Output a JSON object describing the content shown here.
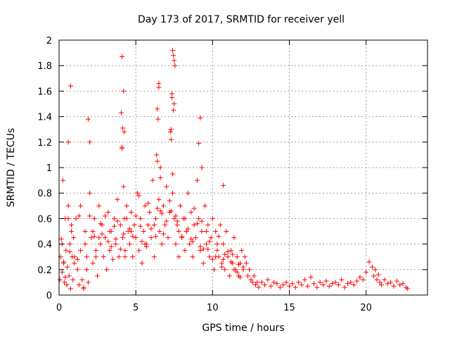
{
  "chart_data": {
    "type": "scatter",
    "title": "Day 173 of 2017, SRMTID for receiver yell",
    "xlabel": "GPS time / hours",
    "ylabel": "SRMTID / TECUs",
    "xlim": [
      0,
      24
    ],
    "ylim": [
      0,
      2
    ],
    "xticks": [
      "0",
      "5",
      "10",
      "15",
      "20"
    ],
    "xtick_values": [
      0,
      5,
      10,
      15,
      20
    ],
    "yticks": [
      "0",
      "0.2",
      "0.4",
      "0.6",
      "0.8",
      "1",
      "1.2",
      "1.4",
      "1.6",
      "1.8",
      "2"
    ],
    "ytick_values": [
      0,
      0.2,
      0.4,
      0.6,
      0.8,
      1.0,
      1.2,
      1.4,
      1.6,
      1.8,
      2.0
    ],
    "grid": true,
    "marker": "+",
    "color": "#ff0000",
    "series": [
      {
        "name": "SRMTID",
        "x": [
          0.05,
          0.1,
          0.15,
          0.2,
          0.25,
          0.3,
          0.35,
          0.4,
          0.45,
          0.5,
          0.55,
          0.6,
          0.65,
          0.7,
          0.75,
          0.8,
          0.85,
          0.9,
          0.95,
          1.0,
          1.1,
          1.2,
          1.3,
          1.4,
          1.5,
          1.6,
          1.7,
          1.8,
          1.9,
          2.0,
          2.1,
          2.2,
          2.3,
          2.4,
          2.5,
          2.6,
          2.7,
          2.8,
          2.9,
          3.0,
          3.1,
          3.2,
          3.3,
          3.4,
          3.5,
          3.6,
          3.7,
          3.8,
          3.9,
          4.0,
          4.1,
          4.15,
          4.2,
          4.25,
          4.3,
          4.4,
          4.5,
          4.6,
          4.7,
          4.8,
          4.9,
          5.0,
          5.1,
          5.2,
          5.3,
          5.4,
          5.5,
          5.6,
          5.7,
          5.8,
          5.9,
          6.0,
          6.1,
          6.2,
          6.3,
          6.4,
          6.5,
          6.55,
          6.6,
          6.7,
          6.8,
          6.9,
          7.0,
          7.1,
          7.2,
          7.3,
          7.35,
          7.4,
          7.45,
          7.5,
          7.6,
          7.7,
          7.8,
          7.9,
          8.0,
          8.1,
          8.2,
          8.3,
          8.4,
          8.5,
          8.6,
          8.7,
          8.8,
          8.9,
          9.0,
          9.1,
          9.2,
          9.3,
          9.4,
          9.5,
          9.6,
          9.7,
          9.8,
          9.9,
          10.0,
          10.1,
          10.2,
          10.3,
          10.4,
          10.5,
          10.6,
          10.7,
          10.8,
          10.9,
          11.0,
          11.1,
          11.2,
          11.3,
          11.4,
          11.5,
          11.6,
          11.7,
          11.8,
          11.9,
          12.0,
          12.1,
          12.2,
          12.3,
          12.4,
          12.5,
          12.6,
          12.7,
          12.8,
          12.9,
          13.0,
          13.2,
          13.4,
          13.6,
          13.8,
          14.0,
          14.2,
          14.4,
          14.6,
          14.8,
          15.0,
          15.2,
          15.4,
          15.6,
          15.8,
          16.0,
          16.2,
          16.4,
          16.6,
          16.8,
          17.0,
          17.2,
          17.4,
          17.6,
          17.8,
          18.0,
          18.2,
          18.4,
          18.6,
          18.8,
          19.0,
          19.2,
          19.4,
          19.6,
          19.8,
          20.0,
          20.2,
          20.4,
          20.5,
          20.6,
          20.7,
          20.8,
          20.9,
          21.0,
          21.2,
          21.4,
          21.6,
          21.8,
          22.0,
          22.2,
          22.4,
          22.6,
          22.7,
          0.2,
          0.6,
          1.0,
          1.4,
          1.8,
          2.2,
          2.6,
          3.0,
          3.4,
          3.8,
          4.2,
          4.6,
          5.0,
          5.4,
          5.8,
          6.2,
          6.6,
          7.0,
          7.4,
          7.8,
          8.2,
          8.6,
          9.0,
          9.4,
          9.8,
          10.2,
          10.6,
          11.0,
          11.4,
          11.8,
          0.4,
          0.8,
          1.2,
          1.6,
          2.0,
          2.4,
          2.8,
          3.2,
          3.6,
          4.0,
          4.4,
          4.8,
          5.2,
          5.6,
          6.0,
          6.4,
          6.8,
          7.2,
          7.6,
          8.0,
          8.4,
          8.8,
          9.2,
          9.6,
          10.0,
          10.4,
          10.8,
          11.2,
          11.6,
          12.0,
          0.7,
          1.7,
          2.7,
          3.7,
          4.7,
          5.7,
          6.7,
          7.7,
          8.7,
          9.7,
          10.7,
          11.7,
          0.3,
          1.3,
          2.3,
          3.3,
          4.3,
          5.3,
          6.3,
          7.3,
          8.3,
          9.3,
          10.3,
          11.3,
          4.1,
          4.2,
          6.5,
          6.5,
          7.4,
          7.45,
          7.5,
          7.55,
          0.75,
          0.6,
          1.9,
          2.0,
          4.05,
          4.15,
          4.25,
          4.1,
          6.4,
          6.45,
          7.35,
          7.5,
          9.1,
          9.2,
          9.3,
          10.7,
          6.35,
          6.6,
          7.25,
          7.3
        ],
        "y": [
          0.12,
          0.3,
          0.44,
          0.18,
          0.9,
          0.25,
          0.1,
          0.6,
          0.35,
          0.08,
          0.22,
          0.7,
          0.15,
          0.4,
          0.05,
          0.55,
          0.3,
          0.12,
          0.45,
          0.25,
          0.6,
          0.2,
          0.08,
          0.35,
          0.12,
          0.05,
          0.5,
          0.3,
          0.1,
          0.8,
          0.45,
          0.25,
          0.6,
          0.35,
          0.15,
          0.7,
          0.4,
          0.55,
          0.3,
          0.45,
          0.2,
          0.65,
          0.35,
          0.5,
          0.28,
          0.6,
          0.4,
          0.75,
          0.3,
          0.55,
          1.15,
          0.45,
          0.85,
          0.6,
          0.35,
          0.7,
          0.5,
          0.4,
          0.65,
          0.3,
          0.55,
          0.45,
          0.8,
          0.35,
          0.6,
          0.25,
          0.5,
          0.7,
          0.4,
          0.55,
          0.65,
          0.45,
          0.9,
          0.3,
          0.6,
          1.05,
          0.75,
          0.5,
          1.0,
          0.4,
          0.7,
          0.55,
          0.85,
          0.45,
          0.65,
          1.3,
          1.55,
          0.95,
          1.45,
          0.6,
          0.4,
          0.55,
          0.3,
          0.7,
          0.45,
          0.6,
          0.35,
          0.5,
          0.8,
          0.4,
          0.65,
          0.3,
          0.55,
          0.45,
          0.9,
          0.6,
          0.35,
          0.5,
          0.25,
          0.7,
          0.4,
          0.55,
          0.3,
          0.45,
          0.6,
          0.2,
          0.5,
          0.35,
          0.3,
          0.55,
          0.25,
          0.4,
          0.2,
          0.5,
          0.3,
          0.15,
          0.35,
          0.25,
          0.45,
          0.2,
          0.3,
          0.15,
          0.25,
          0.35,
          0.2,
          0.3,
          0.25,
          0.15,
          0.2,
          0.12,
          0.1,
          0.15,
          0.08,
          0.1,
          0.06,
          0.1,
          0.08,
          0.12,
          0.07,
          0.1,
          0.09,
          0.06,
          0.08,
          0.1,
          0.07,
          0.09,
          0.06,
          0.1,
          0.08,
          0.12,
          0.07,
          0.14,
          0.09,
          0.06,
          0.1,
          0.08,
          0.11,
          0.07,
          0.09,
          0.1,
          0.08,
          0.12,
          0.06,
          0.09,
          0.1,
          0.08,
          0.11,
          0.14,
          0.12,
          0.18,
          0.26,
          0.22,
          0.15,
          0.2,
          0.12,
          0.16,
          0.1,
          0.08,
          0.12,
          0.09,
          0.1,
          0.07,
          0.11,
          0.08,
          0.09,
          0.06,
          0.05,
          0.4,
          0.6,
          0.3,
          0.7,
          0.2,
          0.5,
          0.45,
          0.62,
          0.38,
          0.58,
          0.48,
          0.52,
          0.62,
          0.42,
          0.72,
          0.55,
          0.66,
          0.58,
          0.8,
          0.5,
          0.6,
          0.44,
          0.56,
          0.36,
          0.42,
          0.3,
          0.22,
          0.34,
          0.2,
          0.14,
          0.14,
          0.5,
          0.28,
          0.06,
          0.62,
          0.3,
          0.48,
          0.42,
          0.54,
          0.36,
          0.6,
          0.46,
          0.78,
          0.4,
          0.52,
          0.68,
          0.48,
          0.74,
          0.62,
          0.46,
          0.52,
          0.68,
          0.38,
          0.5,
          0.28,
          0.46,
          0.32,
          0.26,
          0.18,
          0.22,
          0.34,
          0.4,
          0.56,
          0.44,
          0.5,
          0.38,
          0.64,
          0.58,
          0.42,
          0.36,
          0.28,
          0.24,
          0.26,
          0.62,
          0.46,
          0.5,
          0.3,
          0.54,
          0.46,
          0.66,
          0.5,
          0.58,
          0.4,
          0.32,
          1.87,
          1.6,
          1.66,
          1.63,
          1.92,
          1.88,
          1.84,
          1.8,
          1.64,
          1.2,
          1.38,
          1.2,
          1.43,
          1.31,
          1.28,
          1.16,
          1.46,
          1.38,
          1.58,
          1.5,
          1.19,
          1.39,
          1.0,
          0.86,
          1.1,
          0.92,
          1.28,
          1.22
        ]
      }
    ]
  }
}
